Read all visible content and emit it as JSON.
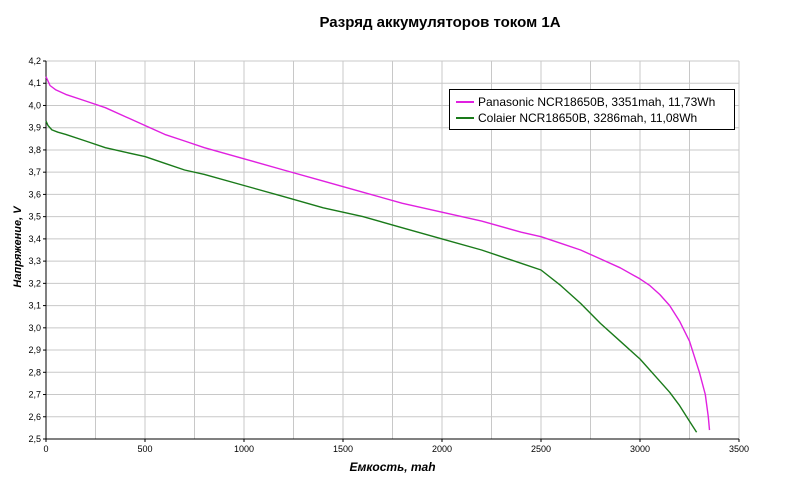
{
  "chart_data": {
    "type": "line",
    "title": "Разряд аккумуляторов током 1А",
    "xlabel": "Емкость, mah",
    "ylabel": "Напряжение, V",
    "xlim": [
      0,
      3500
    ],
    "ylim": [
      2.5,
      4.2
    ],
    "xticks": [
      "0",
      "500",
      "1000",
      "1500",
      "2000",
      "2500",
      "3000",
      "3500"
    ],
    "yticks": [
      "2,5",
      "2,6",
      "2,7",
      "2,8",
      "2,9",
      "3,0",
      "3,1",
      "3,2",
      "3,3",
      "3,4",
      "3,5",
      "3,6",
      "3,7",
      "3,8",
      "3,9",
      "4,0",
      "4,1",
      "4,2"
    ],
    "grid": true,
    "legend_position": "top-right",
    "series": [
      {
        "name": "Panasonic NCR18650B, 3351mah, 11,73Wh",
        "color": "#e020e0",
        "x": [
          0,
          20,
          50,
          100,
          200,
          300,
          400,
          500,
          600,
          700,
          800,
          1000,
          1200,
          1400,
          1600,
          1800,
          2000,
          2200,
          2400,
          2500,
          2600,
          2700,
          2800,
          2900,
          3000,
          3050,
          3100,
          3150,
          3200,
          3250,
          3300,
          3330,
          3345,
          3351
        ],
        "y": [
          4.13,
          4.09,
          4.07,
          4.05,
          4.02,
          3.99,
          3.95,
          3.91,
          3.87,
          3.84,
          3.81,
          3.76,
          3.71,
          3.66,
          3.61,
          3.56,
          3.52,
          3.48,
          3.43,
          3.41,
          3.38,
          3.35,
          3.31,
          3.27,
          3.22,
          3.19,
          3.15,
          3.1,
          3.03,
          2.94,
          2.8,
          2.7,
          2.6,
          2.54
        ]
      },
      {
        "name": "Colaier NCR18650B, 3286mah, 11,08Wh",
        "color": "#1a7a1a",
        "x": [
          0,
          10,
          30,
          60,
          100,
          200,
          300,
          400,
          500,
          600,
          700,
          800,
          1000,
          1200,
          1400,
          1600,
          1800,
          2000,
          2200,
          2400,
          2500,
          2600,
          2700,
          2800,
          2900,
          3000,
          3100,
          3150,
          3200,
          3250,
          3286
        ],
        "y": [
          3.93,
          3.91,
          3.89,
          3.88,
          3.87,
          3.84,
          3.81,
          3.79,
          3.77,
          3.74,
          3.71,
          3.69,
          3.64,
          3.59,
          3.54,
          3.5,
          3.45,
          3.4,
          3.35,
          3.29,
          3.26,
          3.19,
          3.11,
          3.02,
          2.94,
          2.86,
          2.76,
          2.71,
          2.65,
          2.58,
          2.53
        ]
      }
    ]
  }
}
